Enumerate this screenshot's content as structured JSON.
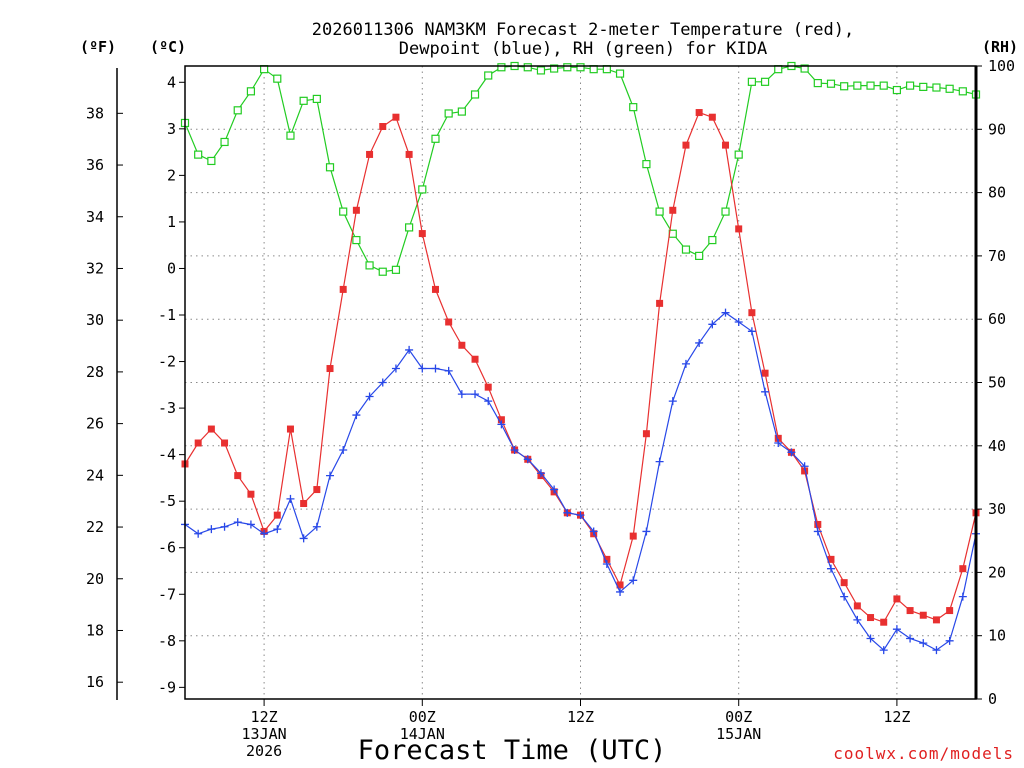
{
  "chart_data": {
    "type": "line",
    "title": [
      "2026011306 NAM3KM Forecast 2-meter Temperature (red),",
      "Dewpoint (blue), RH (green) for KIDA"
    ],
    "xlabel": "Forecast Time (UTC)",
    "x_ticks": [
      {
        "hour": 6,
        "lines": [
          "12Z",
          "13JAN",
          "2026"
        ]
      },
      {
        "hour": 18,
        "lines": [
          "00Z",
          "14JAN"
        ]
      },
      {
        "hour": 30,
        "lines": [
          "12Z"
        ]
      },
      {
        "hour": 42,
        "lines": [
          "00Z",
          "15JAN"
        ]
      },
      {
        "hour": 54,
        "lines": [
          "12Z"
        ]
      }
    ],
    "xlim_hours": [
      0,
      60
    ],
    "y_left_outer": {
      "label": "(ºF)",
      "ticks": [
        "16",
        "18",
        "20",
        "22",
        "24",
        "26",
        "28",
        "30",
        "32",
        "34",
        "36",
        "38"
      ]
    },
    "y_left_inner": {
      "label": "(ºC)",
      "ylim": [
        -9.25,
        4.35
      ],
      "ticks": [
        "-9",
        "-8",
        "-7",
        "-6",
        "-5",
        "-4",
        "-3",
        "-2",
        "-1",
        "0",
        "1",
        "2",
        "3",
        "4"
      ]
    },
    "y_right": {
      "label": "(RH)",
      "ylim": [
        0,
        100
      ],
      "ticks": [
        "0",
        "10",
        "20",
        "30",
        "40",
        "50",
        "60",
        "70",
        "80",
        "90",
        "100"
      ]
    },
    "series": [
      {
        "name": "Temperature",
        "unit": "C",
        "color": "#e83030",
        "marker": "filled-square",
        "values": [
          -4.2,
          -3.75,
          -3.45,
          -3.75,
          -4.45,
          -4.85,
          -5.65,
          -5.3,
          -3.45,
          -5.05,
          -4.75,
          -2.15,
          -0.45,
          1.25,
          2.45,
          3.05,
          3.25,
          2.45,
          0.75,
          -0.45,
          -1.15,
          -1.65,
          -1.95,
          -2.55,
          -3.25,
          -3.9,
          -4.1,
          -4.45,
          -4.8,
          -5.25,
          -5.3,
          -5.7,
          -6.25,
          -6.8,
          -5.75,
          -3.55,
          -0.75,
          1.25,
          2.65,
          3.35,
          3.25,
          2.65,
          0.85,
          -0.95,
          -2.25,
          -3.65,
          -3.95,
          -4.35,
          -5.5,
          -6.25,
          -6.75,
          -7.25,
          -7.5,
          -7.6,
          -7.1,
          -7.35,
          -7.45,
          -7.55,
          -7.35,
          -6.45,
          -5.25
        ]
      },
      {
        "name": "Dewpoint",
        "unit": "C",
        "color": "#2848e8",
        "marker": "plus",
        "values": [
          -5.5,
          -5.7,
          -5.6,
          -5.55,
          -5.45,
          -5.5,
          -5.7,
          -5.6,
          -4.95,
          -5.8,
          -5.55,
          -4.45,
          -3.9,
          -3.15,
          -2.75,
          -2.45,
          -2.15,
          -1.75,
          -2.15,
          -2.15,
          -2.2,
          -2.7,
          -2.7,
          -2.85,
          -3.35,
          -3.9,
          -4.1,
          -4.4,
          -4.75,
          -5.25,
          -5.3,
          -5.65,
          -6.35,
          -6.95,
          -6.7,
          -5.65,
          -4.15,
          -2.85,
          -2.05,
          -1.6,
          -1.2,
          -0.95,
          -1.15,
          -1.35,
          -2.65,
          -3.75,
          -3.95,
          -4.25,
          -5.65,
          -6.45,
          -7.05,
          -7.55,
          -7.95,
          -8.2,
          -7.75,
          -7.95,
          -8.05,
          -8.2,
          -8.0,
          -7.05,
          -5.7
        ]
      },
      {
        "name": "RH",
        "unit": "%",
        "color": "#22cc22",
        "marker": "open-square",
        "values": [
          91,
          86,
          85,
          88,
          93,
          96,
          99.5,
          98,
          89,
          94.5,
          94.8,
          84,
          77,
          72.5,
          68.5,
          67.5,
          67.8,
          74.5,
          80.5,
          88.5,
          92.5,
          92.8,
          95.5,
          98.5,
          99.8,
          100,
          99.8,
          99.3,
          99.6,
          99.8,
          99.8,
          99.5,
          99.5,
          98.8,
          93.5,
          84.5,
          77,
          73.5,
          71,
          70,
          72.5,
          77,
          86,
          97.5,
          97.5,
          99.5,
          100,
          99.6,
          97.3,
          97.2,
          96.8,
          96.9,
          96.9,
          96.9,
          96.2,
          96.9,
          96.7,
          96.6,
          96.4,
          96,
          95.5
        ]
      }
    ]
  },
  "credit": "coolwx.com/models"
}
